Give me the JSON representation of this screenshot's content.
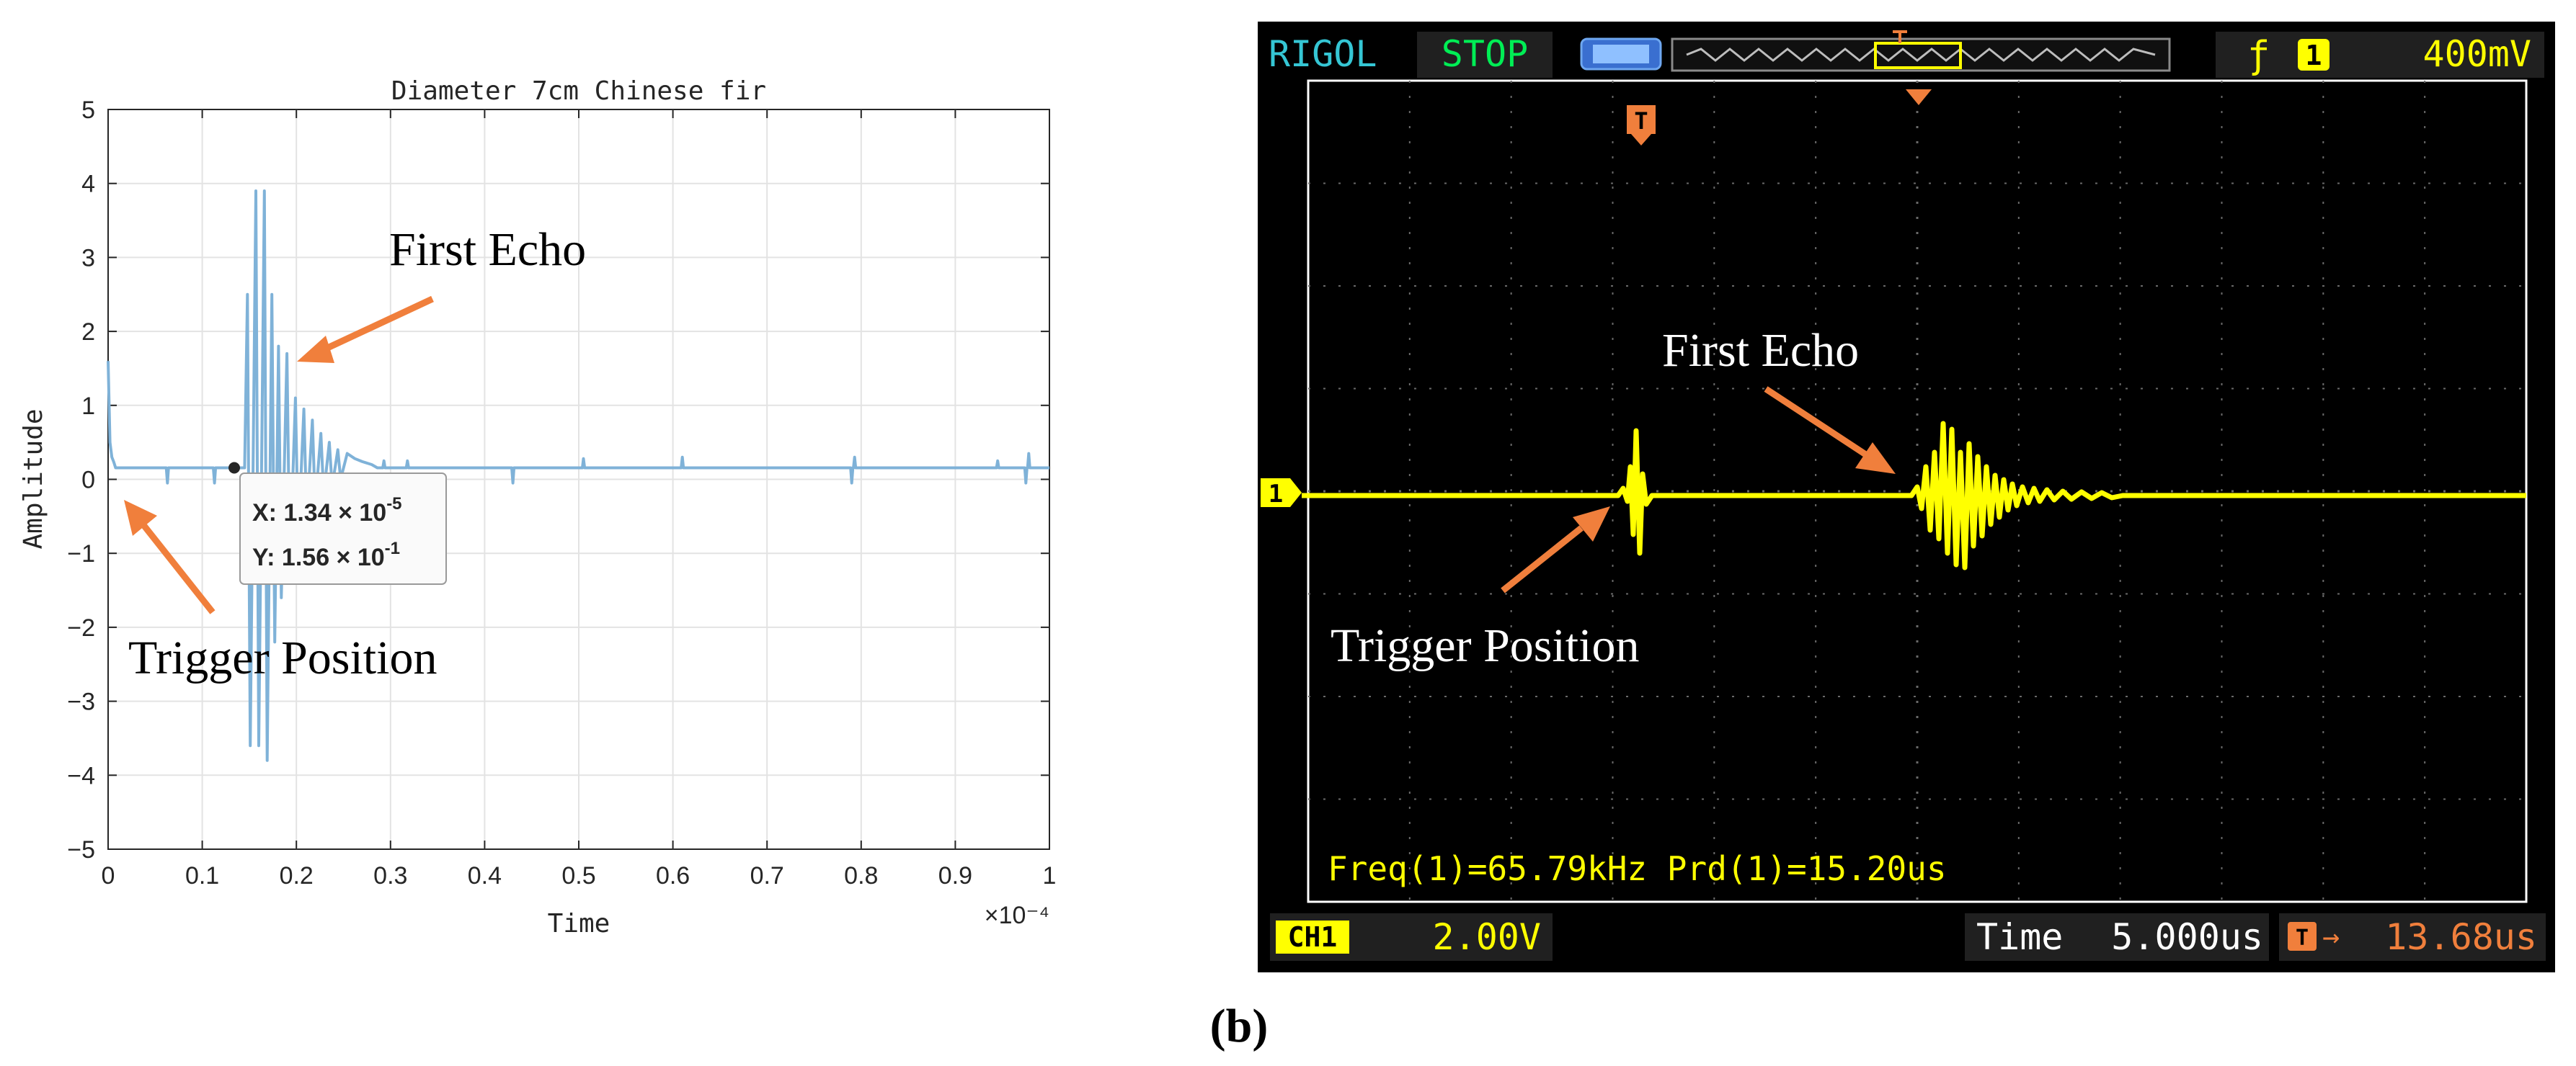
{
  "chart_data": [
    {
      "type": "line",
      "title": "Diameter 7cm Chinese fir",
      "xlabel": "Time",
      "ylabel": "Amplitude",
      "x_multiplier": "×10⁻⁴",
      "xlim": [
        0,
        0.0001
      ],
      "ylim": [
        -5,
        5
      ],
      "x_ticks": [
        0,
        0.1,
        0.2,
        0.3,
        0.4,
        0.5,
        0.6,
        0.7,
        0.8,
        0.9,
        1
      ],
      "x_tick_labels": [
        "0",
        "0.1",
        "0.2",
        "0.3",
        "0.4",
        "0.5",
        "0.6",
        "0.7",
        "0.8",
        "0.9",
        "1"
      ],
      "y_ticks": [
        5,
        4,
        3,
        2,
        1,
        0,
        -1,
        -2,
        -3,
        -4,
        -5
      ],
      "y_tick_labels": [
        "5",
        "4",
        "3",
        "2",
        "1",
        "0",
        "−1",
        "−2",
        "−3",
        "−4",
        "−5"
      ],
      "grid": true,
      "series_color": "#7fb2d8",
      "series": [
        {
          "baseline": 0.156,
          "initial_spike": {
            "x": 0.0,
            "y": 1.6
          },
          "burst": [
            {
              "x": 0.148,
              "y": 2.5
            },
            {
              "x": 0.151,
              "y": -3.6
            },
            {
              "x": 0.157,
              "y": 3.9
            },
            {
              "x": 0.16,
              "y": -3.6
            },
            {
              "x": 0.166,
              "y": 3.9
            },
            {
              "x": 0.169,
              "y": -3.8
            },
            {
              "x": 0.174,
              "y": 2.5
            },
            {
              "x": 0.177,
              "y": -2.2
            },
            {
              "x": 0.181,
              "y": 1.8
            },
            {
              "x": 0.184,
              "y": -1.6
            },
            {
              "x": 0.19,
              "y": 1.7
            },
            {
              "x": 0.193,
              "y": -1.2
            },
            {
              "x": 0.199,
              "y": 1.1
            },
            {
              "x": 0.202,
              "y": -0.8
            },
            {
              "x": 0.208,
              "y": 0.95
            },
            {
              "x": 0.211,
              "y": -0.55
            },
            {
              "x": 0.217,
              "y": 0.8
            },
            {
              "x": 0.22,
              "y": -0.35
            },
            {
              "x": 0.226,
              "y": 0.62
            },
            {
              "x": 0.229,
              "y": -0.2
            },
            {
              "x": 0.235,
              "y": 0.5
            },
            {
              "x": 0.238,
              "y": -0.1
            },
            {
              "x": 0.244,
              "y": 0.4
            },
            {
              "x": 0.247,
              "y": 0.0
            },
            {
              "x": 0.254,
              "y": 0.35
            },
            {
              "x": 0.262,
              "y": 0.28
            },
            {
              "x": 0.27,
              "y": 0.24
            },
            {
              "x": 0.28,
              "y": 0.2
            }
          ],
          "glitches": [
            {
              "x": 0.063,
              "y": -0.05
            },
            {
              "x": 0.113,
              "y": -0.05
            },
            {
              "x": 0.175,
              "y": 0.3
            },
            {
              "x": 0.293,
              "y": 0.25
            },
            {
              "x": 0.318,
              "y": 0.25
            },
            {
              "x": 0.43,
              "y": -0.05
            },
            {
              "x": 0.505,
              "y": 0.28
            },
            {
              "x": 0.61,
              "y": 0.3
            },
            {
              "x": 0.79,
              "y": -0.05
            },
            {
              "x": 0.793,
              "y": 0.3
            },
            {
              "x": 0.945,
              "y": 0.25
            },
            {
              "x": 0.975,
              "y": -0.05
            },
            {
              "x": 0.978,
              "y": 0.35
            }
          ]
        }
      ],
      "datatip": {
        "x": 0.134,
        "y": 0.156,
        "x_label": "X: 1.34 × 10",
        "x_exp": "-5",
        "y_label": "Y: 1.56 × 10",
        "y_exp": "-1"
      },
      "annotations": [
        {
          "text": "First Echo",
          "arrow_color": "#f07f3c"
        },
        {
          "text": "Trigger Position",
          "arrow_color": "#f07f3c"
        }
      ]
    },
    {
      "type": "line",
      "device": "RIGOL",
      "status": "STOP",
      "trigger_level_label": "400mV",
      "trigger_channel": "1",
      "trigger_marker": "T",
      "channel_marker": "1",
      "channel_label": "CH1",
      "channel_scale": "2.00V",
      "time_label": "Time",
      "time_scale": "5.000us",
      "trigger_offset": "13.68us",
      "measurement": "Freq(1)=65.79kHz  Prd(1)=15.20us",
      "divisions": {
        "x": 12,
        "y": 8
      },
      "trace_color": "#ffff00",
      "annotations": [
        {
          "text": "First Echo",
          "arrow_color": "#f07f3c"
        },
        {
          "text": "Trigger Position",
          "arrow_color": "#f07f3c"
        }
      ]
    }
  ],
  "caption": "(b)"
}
